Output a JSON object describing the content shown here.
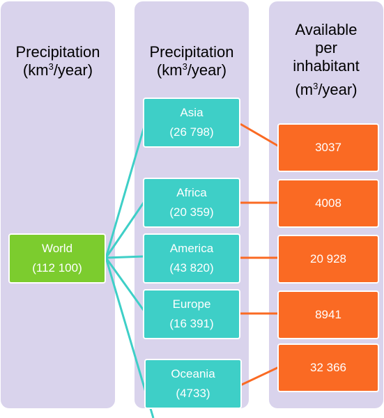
{
  "headers": {
    "col1": {
      "line1": "Precipitation",
      "line2_pre": "(km",
      "sup": "3",
      "line2_post": "/year)"
    },
    "col2": {
      "line1": "Precipitation",
      "line2_pre": "(km",
      "sup": "3",
      "line2_post": "/year)"
    },
    "col3": {
      "line1": "Available",
      "line2": "per",
      "line3": "inhabitant",
      "line4_pre": "(m",
      "sup": "3",
      "line4_post": "/year)"
    }
  },
  "world": {
    "name": "World",
    "value": "(112 100)"
  },
  "regions": [
    {
      "name": "Asia",
      "value": "(26 798)"
    },
    {
      "name": "Africa",
      "value": "(20 359)"
    },
    {
      "name": "America",
      "value": "(43 820)"
    },
    {
      "name": "Europe",
      "value": "(16 391)"
    },
    {
      "name": "Oceania",
      "value": "(4733)"
    }
  ],
  "per_inhabitant": [
    "3037",
    "4008",
    "20 928",
    "8941",
    "32 366"
  ],
  "colors": {
    "background_panel": "#d9d3ec",
    "world_box": "#7ccc2e",
    "region_box": "#3ecfc7",
    "value_box": "#fa6a23",
    "teal_line": "#3ecfc7",
    "orange_line": "#fa6a23"
  }
}
